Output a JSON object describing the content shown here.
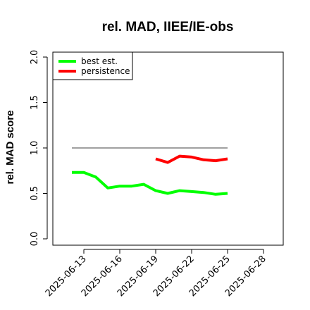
{
  "chart_data": {
    "type": "line",
    "title": "rel. MAD, IIEE/IE-obs",
    "xlabel": "",
    "ylabel": "rel. MAD score",
    "ylim": [
      0.0,
      2.0
    ],
    "y_ticks": [
      "0.0",
      "0.5",
      "1.0",
      "1.5",
      "2.0"
    ],
    "x_ticks": [
      "2025-06-13",
      "2025-06-16",
      "2025-06-19",
      "2025-06-22",
      "2025-06-25",
      "2025-06-28"
    ],
    "xlim": [
      "2025-06-11",
      "2025-06-29"
    ],
    "legend_position": "top-left",
    "reference_line": {
      "value": 1.0,
      "from": "2025-06-12",
      "to": "2025-06-25",
      "color": "#808080"
    },
    "series": [
      {
        "name": "best est.",
        "color": "#00ff00",
        "x": [
          "2025-06-12",
          "2025-06-13",
          "2025-06-14",
          "2025-06-15",
          "2025-06-16",
          "2025-06-17",
          "2025-06-18",
          "2025-06-19",
          "2025-06-20",
          "2025-06-21",
          "2025-06-22",
          "2025-06-23",
          "2025-06-24",
          "2025-06-25"
        ],
        "values": [
          0.73,
          0.73,
          0.68,
          0.56,
          0.58,
          0.58,
          0.6,
          0.53,
          0.5,
          0.53,
          0.52,
          0.51,
          0.49,
          0.5
        ]
      },
      {
        "name": "persistence",
        "color": "#ff0000",
        "x": [
          "2025-06-19",
          "2025-06-20",
          "2025-06-21",
          "2025-06-22",
          "2025-06-23",
          "2025-06-24",
          "2025-06-25"
        ],
        "values": [
          0.88,
          0.84,
          0.91,
          0.9,
          0.87,
          0.86,
          0.88
        ]
      }
    ]
  }
}
